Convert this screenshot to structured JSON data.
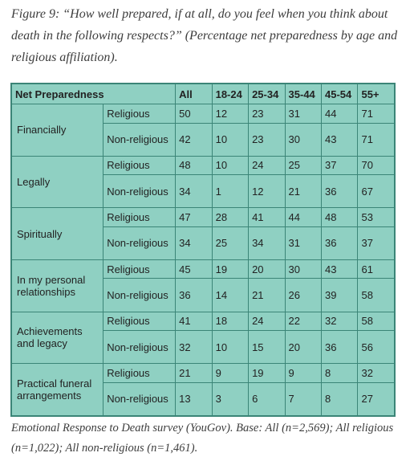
{
  "caption": "Figure 9: “How well prepared, if at all, do you feel when you think about death in the following respects?” (Percentage net preparedness by age and religious affiliation).",
  "table": {
    "header": [
      "Net Preparedness",
      "All",
      "18-24",
      "25-34",
      "35-44",
      "45-54",
      "55+"
    ],
    "rows": [
      {
        "category": "Financially",
        "religious": {
          "label": "Religious",
          "values": [
            "50",
            "12",
            "23",
            "31",
            "44",
            "71"
          ]
        },
        "non_religious": {
          "label": "Non-religious",
          "values": [
            "42",
            "10",
            "23",
            "30",
            "43",
            "71"
          ]
        }
      },
      {
        "category": "Legally",
        "religious": {
          "label": "Religious",
          "values": [
            "48",
            "10",
            "24",
            "25",
            "37",
            "70"
          ]
        },
        "non_religious": {
          "label": "Non-religious",
          "values": [
            "34",
            "1",
            "12",
            "21",
            "36",
            "67"
          ]
        }
      },
      {
        "category": "Spiritually",
        "religious": {
          "label": "Religious",
          "values": [
            "47",
            "28",
            "41",
            "44",
            "48",
            "53"
          ]
        },
        "non_religious": {
          "label": "Non-religious",
          "values": [
            "34",
            "25",
            "34",
            "31",
            "36",
            "37"
          ]
        }
      },
      {
        "category": "In my personal relationships",
        "religious": {
          "label": "Religious",
          "values": [
            "45",
            "19",
            "20",
            "30",
            "43",
            "61"
          ]
        },
        "non_religious": {
          "label": "Non-religious",
          "values": [
            "36",
            "14",
            "21",
            "26",
            "39",
            "58"
          ]
        }
      },
      {
        "category": "Achievements and legacy",
        "religious": {
          "label": "Religious",
          "values": [
            "41",
            "18",
            "24",
            "22",
            "32",
            "58"
          ]
        },
        "non_religious": {
          "label": "Non-religious",
          "values": [
            "32",
            "10",
            "15",
            "20",
            "36",
            "56"
          ]
        }
      },
      {
        "category": "Practical funeral arrangements",
        "religious": {
          "label": "Religious",
          "values": [
            "21",
            "9",
            "19",
            "9",
            "8",
            "32"
          ]
        },
        "non_religious": {
          "label": "Non-religious",
          "values": [
            "13",
            "3",
            "6",
            "7",
            "8",
            "27"
          ]
        }
      }
    ]
  },
  "footer": "Emotional Response to Death survey (YouGov). Base: All (n=2,569); All religious (n=1,022); All non-religious (n=1,461).",
  "colors": {
    "table_bg": "#8fd0c2",
    "table_border": "#3b8577"
  }
}
